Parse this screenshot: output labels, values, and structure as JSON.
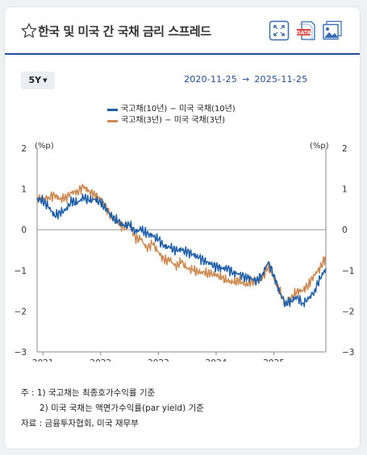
{
  "header": {
    "title": "한국 및 미국 간 국채 금리 스프레드",
    "icons": [
      "star-icon",
      "expand-icon",
      "data-download-icon",
      "image-download-icon"
    ],
    "data_badge": "DATA"
  },
  "controls": {
    "period_label": "5Y",
    "range_start": "2020-11-25",
    "range_arrow": "→",
    "range_end": "2025-11-25"
  },
  "colors": {
    "accent": "#1f4e98",
    "series1": "#1f5fa8",
    "series2": "#cc8a52",
    "zero_line": "#9a9a9a"
  },
  "chart_data": {
    "type": "line",
    "unit_left": "(%p)",
    "unit_right": "(%p)",
    "ylim": [
      -3,
      2
    ],
    "yticks": [
      2,
      1,
      0,
      -1,
      -2,
      -3
    ],
    "xlim": [
      2020.9,
      2025.9
    ],
    "xticks": [
      2021,
      2022,
      2023,
      2024,
      2025
    ],
    "zero_line": true,
    "grid": false,
    "legend_position": "top-center",
    "series": [
      {
        "name": "국고채(10년) − 미국 국채(10년)",
        "x": [
          2020.9,
          2021.0,
          2021.1,
          2021.2,
          2021.3,
          2021.4,
          2021.5,
          2021.6,
          2021.7,
          2021.8,
          2021.9,
          2022.0,
          2022.1,
          2022.2,
          2022.3,
          2022.4,
          2022.5,
          2022.6,
          2022.7,
          2022.8,
          2022.9,
          2023.0,
          2023.1,
          2023.2,
          2023.3,
          2023.4,
          2023.5,
          2023.6,
          2023.7,
          2023.8,
          2023.9,
          2024.0,
          2024.1,
          2024.2,
          2024.3,
          2024.4,
          2024.5,
          2024.6,
          2024.7,
          2024.8,
          2024.9,
          2025.0,
          2025.1,
          2025.2,
          2025.3,
          2025.4,
          2025.5,
          2025.6,
          2025.7,
          2025.8,
          2025.9
        ],
        "values": [
          0.75,
          0.72,
          0.55,
          0.35,
          0.4,
          0.5,
          0.7,
          0.65,
          0.8,
          0.7,
          0.75,
          0.65,
          0.5,
          0.3,
          0.2,
          0.1,
          0.1,
          -0.05,
          0.0,
          -0.1,
          -0.15,
          -0.25,
          -0.4,
          -0.45,
          -0.5,
          -0.5,
          -0.55,
          -0.6,
          -0.7,
          -0.75,
          -0.85,
          -0.9,
          -0.95,
          -0.95,
          -1.05,
          -1.1,
          -1.15,
          -1.2,
          -1.25,
          -1.1,
          -0.8,
          -1.1,
          -1.55,
          -1.8,
          -1.75,
          -1.65,
          -1.8,
          -1.7,
          -1.5,
          -1.2,
          -0.95
        ]
      },
      {
        "name": "국고채(3년) − 미국 국채(3년)",
        "x": [
          2020.9,
          2021.0,
          2021.1,
          2021.2,
          2021.3,
          2021.4,
          2021.5,
          2021.6,
          2021.7,
          2021.8,
          2021.9,
          2022.0,
          2022.1,
          2022.2,
          2022.3,
          2022.4,
          2022.5,
          2022.6,
          2022.7,
          2022.8,
          2022.9,
          2023.0,
          2023.1,
          2023.2,
          2023.3,
          2023.4,
          2023.5,
          2023.6,
          2023.7,
          2023.8,
          2023.9,
          2024.0,
          2024.1,
          2024.2,
          2024.3,
          2024.4,
          2024.5,
          2024.6,
          2024.7,
          2024.8,
          2024.9,
          2025.0,
          2025.1,
          2025.2,
          2025.3,
          2025.4,
          2025.5,
          2025.6,
          2025.7,
          2025.8,
          2025.9
        ],
        "values": [
          0.8,
          0.75,
          0.8,
          0.85,
          0.75,
          0.8,
          0.9,
          0.95,
          1.05,
          0.95,
          0.85,
          0.75,
          0.55,
          0.25,
          0.2,
          0.05,
          0.15,
          -0.2,
          -0.25,
          -0.45,
          -0.35,
          -0.55,
          -0.75,
          -0.75,
          -0.9,
          -0.8,
          -0.95,
          -1.0,
          -1.05,
          -1.05,
          -1.1,
          -1.1,
          -1.2,
          -1.25,
          -1.3,
          -1.25,
          -1.35,
          -1.3,
          -1.25,
          -1.2,
          -0.9,
          -1.2,
          -1.5,
          -1.85,
          -1.7,
          -1.5,
          -1.5,
          -1.35,
          -1.1,
          -0.95,
          -0.65
        ]
      }
    ]
  },
  "notes": {
    "line1": "주 : 1)  국고채는 최종호가수익률 기준",
    "line2": "2)  미국 국채는 액면가수익률(par yield) 기준",
    "line3": "자료 :  금융투자협회, 미국 재무부"
  }
}
